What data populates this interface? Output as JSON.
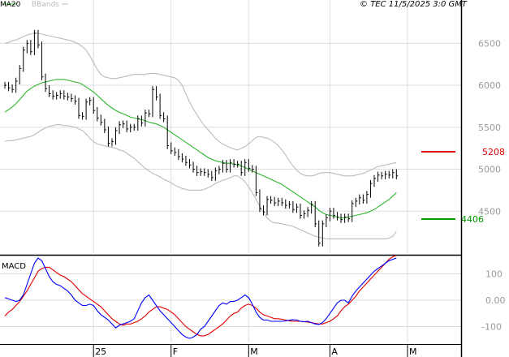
{
  "header": {
    "legend": [
      {
        "label": "MA20",
        "color": "#2db52d"
      },
      {
        "label": "BBands",
        "color": "#bbbbbb"
      }
    ],
    "copyright": "© TEC 11/5/2025 3:0 GMT"
  },
  "macd_panel": {
    "title": "MACD"
  },
  "colors": {
    "price": "#000000",
    "ma": "#2db52d",
    "bbands": "#bbbbbb",
    "macd": "#0000ff",
    "signal": "#e00000",
    "grid": "#dddddd",
    "resistance": "#dd0000",
    "support": "#009900"
  },
  "chart_data": [
    {
      "type": "line",
      "panel": "price",
      "ylim": [
        4000,
        6900
      ],
      "yticks": [
        4500,
        5000,
        5500,
        6000,
        6500
      ],
      "ytick_labels": [
        "4500",
        "5000",
        "5500",
        "6000",
        "6500"
      ],
      "x_labels": [
        {
          "label": "25",
          "index": 24
        },
        {
          "label": "F",
          "index": 45
        },
        {
          "label": "M",
          "index": 66
        },
        {
          "label": "A",
          "index": 88
        },
        {
          "label": "M",
          "index": 109
        }
      ],
      "levels": [
        {
          "name": "resistance",
          "label": "5208",
          "value": 5208,
          "color": "#dd0000"
        },
        {
          "name": "support",
          "label": "4406",
          "value": 4406,
          "color": "#009900"
        }
      ],
      "series": [
        {
          "name": "Close",
          "kind": "hlc",
          "values": [
            6000,
            5970,
            5950,
            6050,
            6200,
            6420,
            6500,
            6400,
            6620,
            6480,
            6100,
            5960,
            5900,
            5870,
            5880,
            5900,
            5870,
            5860,
            5840,
            5810,
            5640,
            5630,
            5800,
            5820,
            5700,
            5610,
            5560,
            5470,
            5310,
            5330,
            5460,
            5530,
            5540,
            5480,
            5500,
            5500,
            5600,
            5550,
            5670,
            5660,
            5950,
            5860,
            5640,
            5600,
            5280,
            5220,
            5200,
            5150,
            5120,
            5080,
            5050,
            5000,
            4960,
            4970,
            4960,
            4940,
            4900,
            4980,
            5000,
            5070,
            5000,
            5080,
            5060,
            5060,
            4960,
            5080,
            5010,
            5000,
            4720,
            4530,
            4490,
            4640,
            4630,
            4600,
            4620,
            4600,
            4570,
            4580,
            4520,
            4550,
            4450,
            4470,
            4510,
            4580,
            4350,
            4120,
            4350,
            4420,
            4500,
            4450,
            4430,
            4400,
            4430,
            4410,
            4590,
            4620,
            4660,
            4630,
            4700,
            4830,
            4890,
            4930,
            4920,
            4940,
            4930,
            4960,
            4920
          ]
        },
        {
          "name": "MA20",
          "values": [
            5680,
            5710,
            5740,
            5780,
            5830,
            5880,
            5930,
            5960,
            5990,
            6010,
            6030,
            6040,
            6050,
            6060,
            6070,
            6070,
            6070,
            6060,
            6050,
            6040,
            6030,
            6010,
            5980,
            5950,
            5920,
            5880,
            5840,
            5800,
            5760,
            5730,
            5700,
            5680,
            5660,
            5640,
            5620,
            5610,
            5600,
            5590,
            5580,
            5560,
            5550,
            5540,
            5520,
            5500,
            5470,
            5440,
            5410,
            5380,
            5350,
            5320,
            5290,
            5260,
            5230,
            5200,
            5170,
            5140,
            5120,
            5100,
            5090,
            5080,
            5070,
            5070,
            5060,
            5050,
            5040,
            5020,
            5000,
            4980,
            4960,
            4940,
            4920,
            4900,
            4880,
            4860,
            4840,
            4820,
            4790,
            4760,
            4730,
            4700,
            4670,
            4640,
            4610,
            4580,
            4550,
            4510,
            4480,
            4460,
            4450,
            4440,
            4430,
            4420,
            4420,
            4430,
            4440,
            4450,
            4460,
            4470,
            4480,
            4500,
            4520,
            4550,
            4580,
            4610,
            4640,
            4680,
            4720
          ]
        },
        {
          "name": "BBands Upper",
          "values": [
            6500,
            6510,
            6530,
            6540,
            6560,
            6580,
            6600,
            6610,
            6620,
            6620,
            6610,
            6600,
            6590,
            6580,
            6570,
            6560,
            6550,
            6540,
            6530,
            6510,
            6490,
            6460,
            6420,
            6350,
            6270,
            6190,
            6130,
            6100,
            6090,
            6080,
            6080,
            6090,
            6100,
            6110,
            6120,
            6130,
            6130,
            6130,
            6130,
            6140,
            6140,
            6140,
            6130,
            6120,
            6110,
            6100,
            6090,
            6060,
            6000,
            5900,
            5800,
            5720,
            5650,
            5580,
            5520,
            5470,
            5420,
            5370,
            5330,
            5300,
            5280,
            5260,
            5240,
            5230,
            5250,
            5270,
            5300,
            5340,
            5380,
            5390,
            5380,
            5370,
            5350,
            5320,
            5280,
            5230,
            5170,
            5100,
            5040,
            4990,
            4950,
            4930,
            4920,
            4920,
            4930,
            4950,
            4960,
            4960,
            4960,
            4950,
            4940,
            4930,
            4920,
            4920,
            4920,
            4930,
            4940,
            4950,
            4970,
            4990,
            5010,
            5030,
            5040,
            5050,
            5060,
            5070,
            5080
          ]
        },
        {
          "name": "BBands Lower",
          "values": [
            5330,
            5340,
            5340,
            5350,
            5360,
            5370,
            5380,
            5390,
            5410,
            5440,
            5470,
            5490,
            5510,
            5520,
            5530,
            5530,
            5520,
            5520,
            5510,
            5500,
            5480,
            5460,
            5420,
            5370,
            5330,
            5300,
            5290,
            5280,
            5270,
            5260,
            5250,
            5230,
            5220,
            5190,
            5160,
            5130,
            5090,
            5050,
            5010,
            4980,
            4950,
            4930,
            4910,
            4880,
            4860,
            4840,
            4810,
            4790,
            4770,
            4760,
            4750,
            4750,
            4750,
            4750,
            4760,
            4780,
            4800,
            4830,
            4850,
            4870,
            4880,
            4900,
            4920,
            4920,
            4890,
            4850,
            4790,
            4720,
            4640,
            4560,
            4480,
            4420,
            4380,
            4360,
            4360,
            4350,
            4340,
            4330,
            4320,
            4300,
            4280,
            4260,
            4240,
            4220,
            4200,
            4190,
            4180,
            4170,
            4170,
            4170,
            4170,
            4170,
            4170,
            4170,
            4170,
            4170,
            4170,
            4170,
            4170,
            4170,
            4170,
            4170,
            4170,
            4170,
            4180,
            4200,
            4260
          ]
        }
      ]
    },
    {
      "type": "line",
      "panel": "macd",
      "title": "MACD",
      "ylim": [
        -160,
        160
      ],
      "yticks": [
        -100,
        0,
        100
      ],
      "ytick_labels": [
        "-100",
        "0.00",
        "100"
      ],
      "series": [
        {
          "name": "MACD",
          "values": [
            10,
            5,
            0,
            -5,
            0,
            20,
            60,
            100,
            140,
            160,
            150,
            120,
            90,
            70,
            60,
            55,
            45,
            35,
            20,
            0,
            -10,
            -20,
            -20,
            -15,
            -20,
            -40,
            -55,
            -65,
            -75,
            -90,
            -105,
            -95,
            -90,
            -85,
            -80,
            -70,
            -40,
            -10,
            10,
            20,
            0,
            -20,
            -40,
            -55,
            -70,
            -85,
            -100,
            -115,
            -130,
            -140,
            -145,
            -140,
            -130,
            -110,
            -100,
            -80,
            -60,
            -40,
            -20,
            -10,
            -15,
            -5,
            -5,
            0,
            10,
            20,
            10,
            -15,
            -45,
            -65,
            -75,
            -75,
            -80,
            -80,
            -80,
            -80,
            -78,
            -76,
            -74,
            -75,
            -80,
            -82,
            -80,
            -85,
            -90,
            -92,
            -85,
            -70,
            -50,
            -30,
            -10,
            0,
            0,
            -10,
            15,
            35,
            50,
            65,
            80,
            95,
            110,
            120,
            130,
            140,
            150,
            155,
            160
          ]
        },
        {
          "name": "Signal",
          "values": [
            -60,
            -45,
            -35,
            -20,
            -5,
            15,
            35,
            60,
            85,
            110,
            120,
            125,
            125,
            115,
            105,
            95,
            90,
            80,
            70,
            55,
            40,
            25,
            15,
            5,
            -5,
            -15,
            -25,
            -40,
            -55,
            -70,
            -80,
            -90,
            -95,
            -90,
            -90,
            -85,
            -80,
            -70,
            -60,
            -45,
            -35,
            -25,
            -25,
            -30,
            -35,
            -45,
            -55,
            -70,
            -85,
            -100,
            -110,
            -120,
            -130,
            -135,
            -135,
            -130,
            -120,
            -110,
            -100,
            -90,
            -75,
            -60,
            -50,
            -45,
            -30,
            -20,
            -15,
            -20,
            -30,
            -45,
            -55,
            -60,
            -65,
            -70,
            -70,
            -72,
            -75,
            -78,
            -80,
            -80,
            -80,
            -82,
            -83,
            -85,
            -88,
            -90,
            -90,
            -85,
            -80,
            -70,
            -60,
            -40,
            -25,
            -15,
            0,
            15,
            35,
            50,
            65,
            80,
            95,
            110,
            125,
            140,
            155,
            165,
            170
          ]
        }
      ]
    }
  ]
}
